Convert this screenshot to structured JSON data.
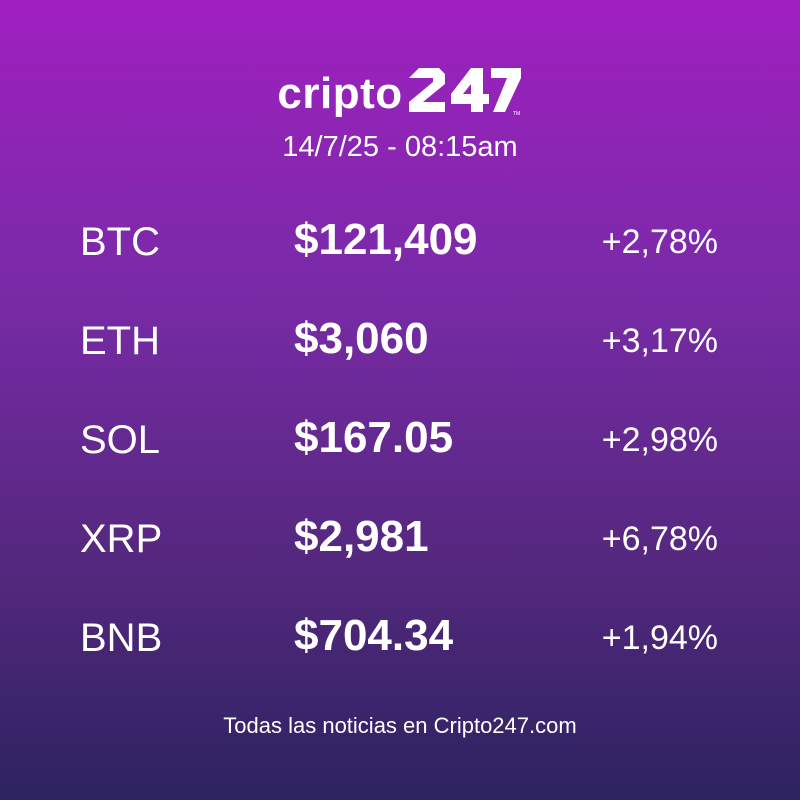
{
  "brand": {
    "wordmark": "cripto",
    "mark_text": "247"
  },
  "datetime": "14/7/25  - 08:15am",
  "rows": [
    {
      "ticker": "BTC",
      "price": "$121,409",
      "change": "+2,78%"
    },
    {
      "ticker": "ETH",
      "price": "$3,060",
      "change": "+3,17%"
    },
    {
      "ticker": "SOL",
      "price": "$167.05",
      "change": "+2,98%"
    },
    {
      "ticker": "XRP",
      "price": "$2,981",
      "change": "+6,78%"
    },
    {
      "ticker": "BNB",
      "price": "$704.34",
      "change": "+1,94%"
    }
  ],
  "footer": "Todas las noticias en Cripto247.com",
  "colors": {
    "gradient_top": "#a020c0",
    "gradient_bottom": "#2c2360",
    "text": "#ffffff"
  }
}
